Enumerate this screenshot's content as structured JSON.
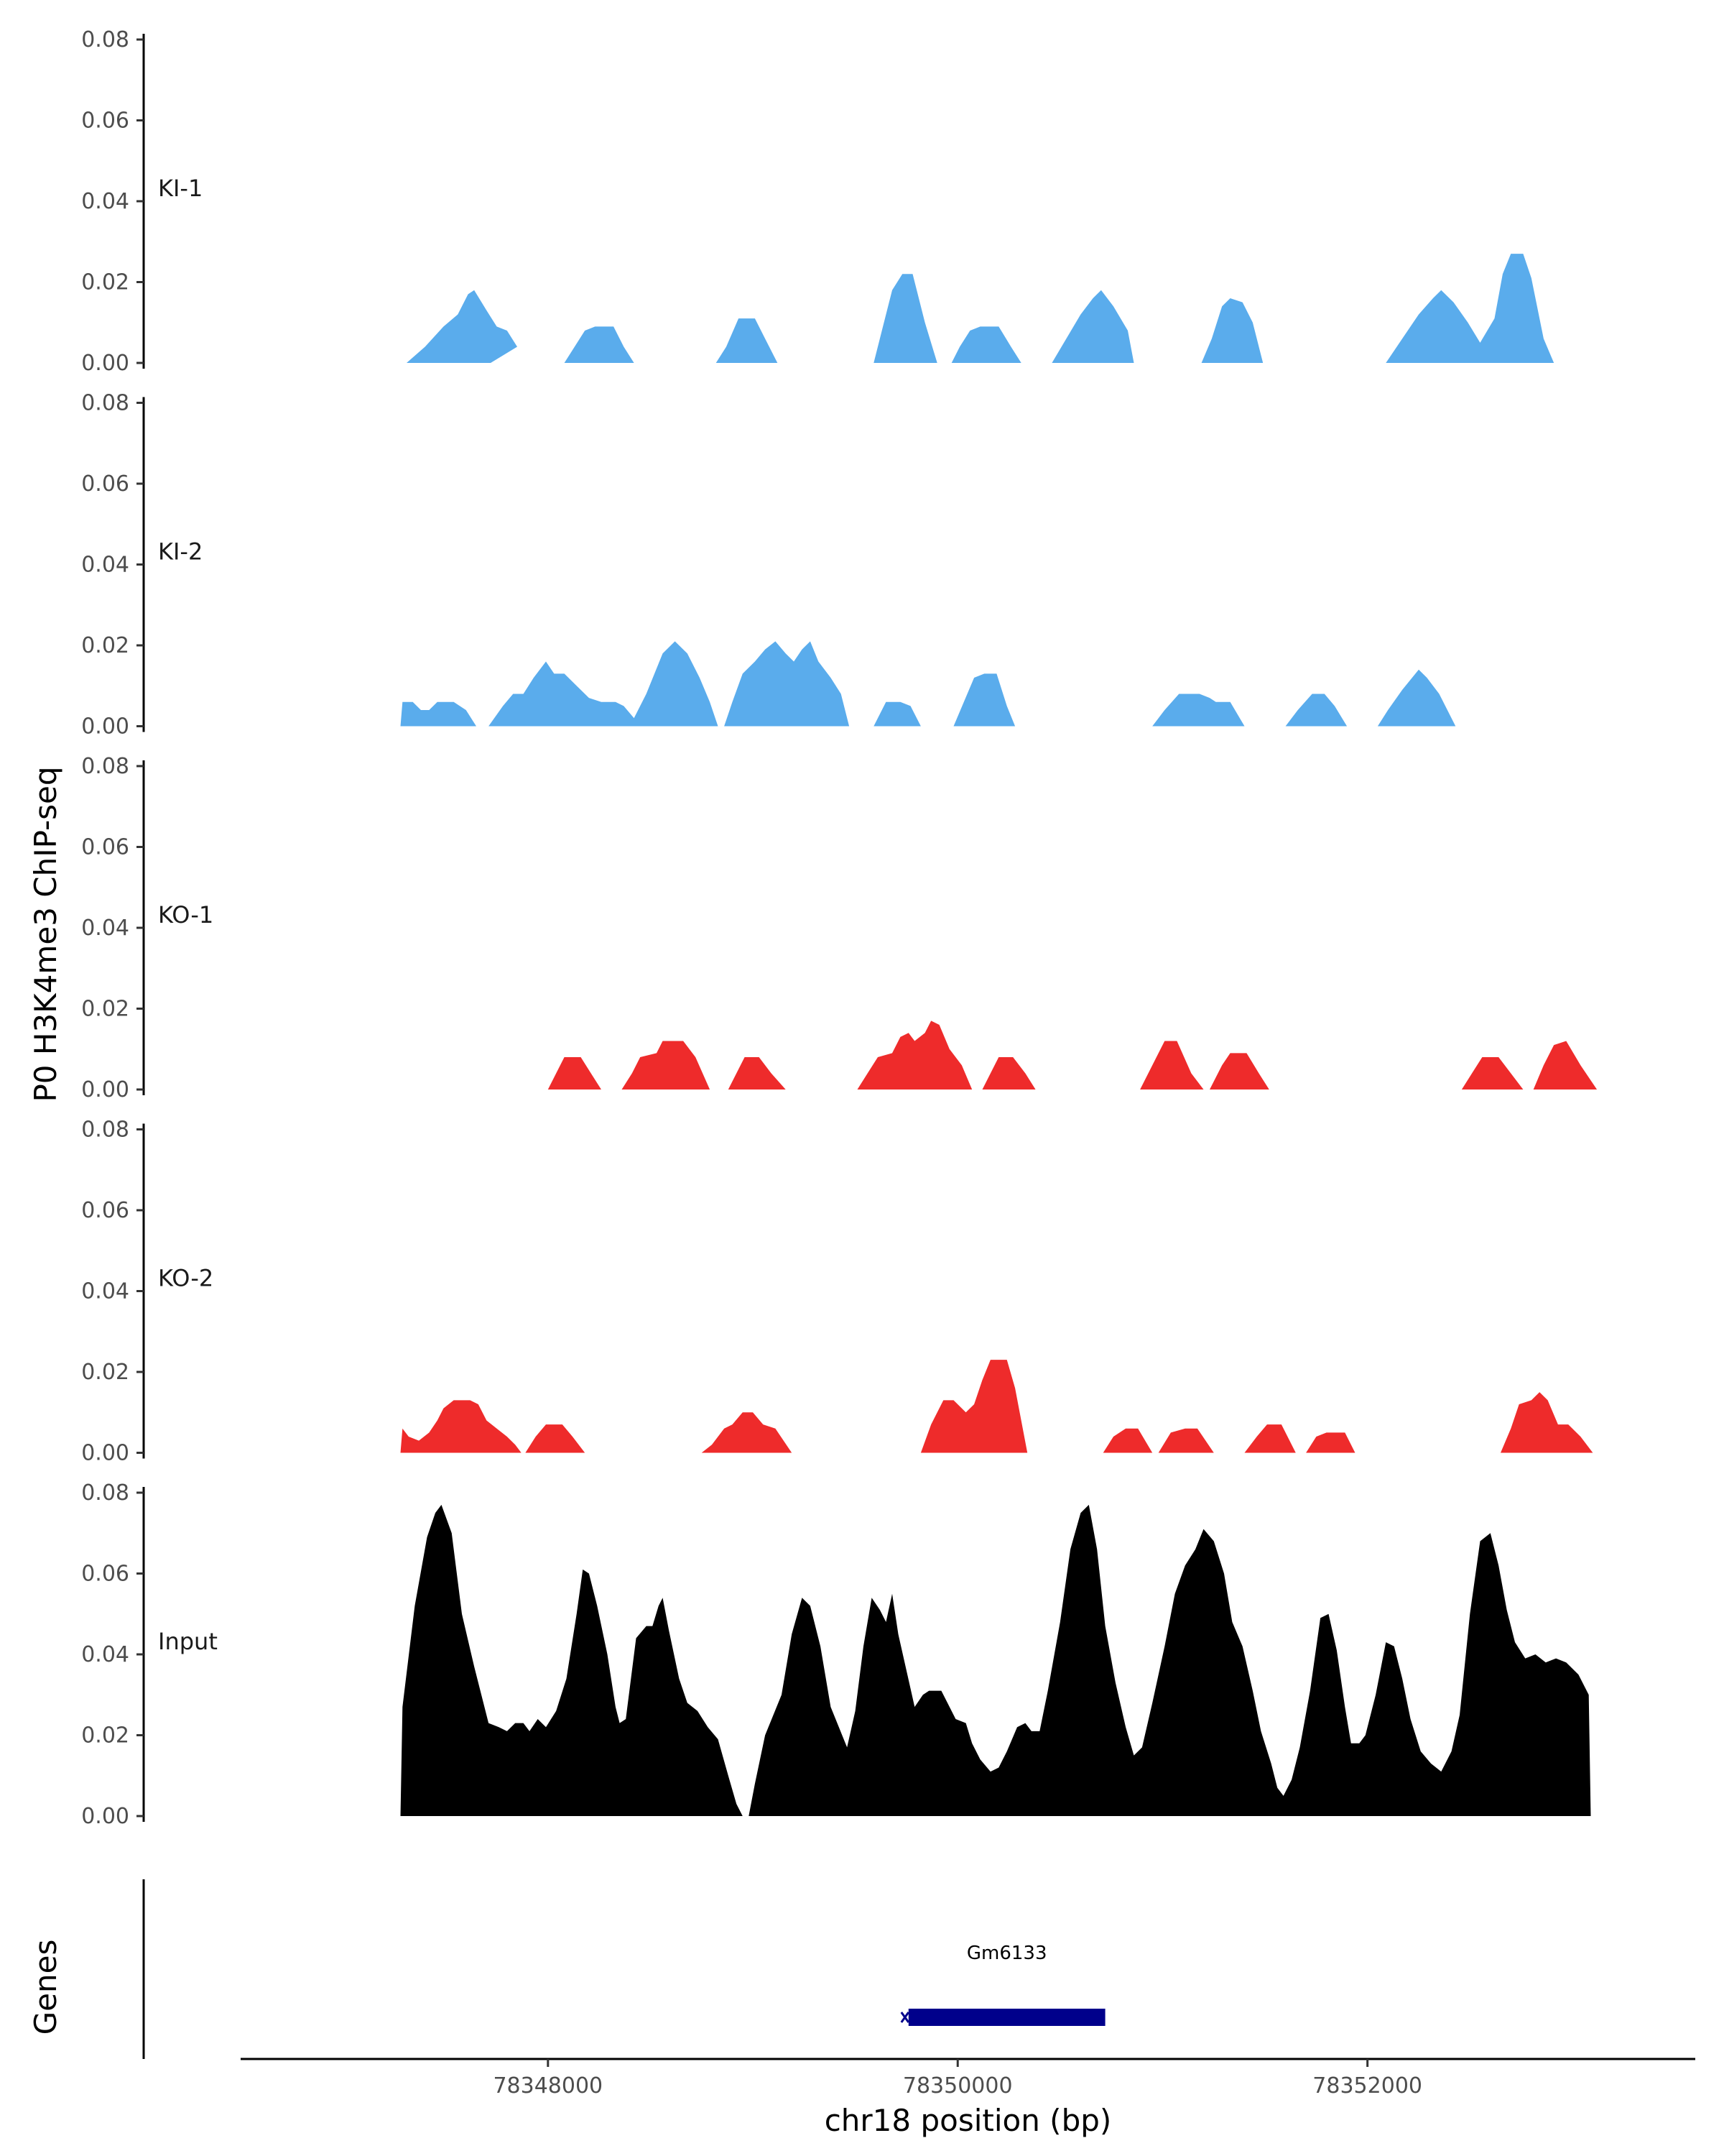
{
  "chart_data": {
    "type": "area",
    "ylabel": "P0 H3K4me3 ChIP-seq",
    "xlabel": "chr18 position (bp)",
    "xlim": [
      78346500,
      78353600
    ],
    "ylim": [
      0,
      0.08
    ],
    "yticks": [
      "0.00",
      "0.02",
      "0.04",
      "0.06",
      "0.08"
    ],
    "xticks": [
      {
        "value": 78348000,
        "label": "78348000"
      },
      {
        "value": 78350000,
        "label": "78350000"
      },
      {
        "value": 78352000,
        "label": "78352000"
      }
    ],
    "colors": {
      "KI": "#5AACEC",
      "KO": "#EE2B2B",
      "Input": "#000000",
      "gene": "#00008B"
    },
    "tracks": [
      {
        "name": "KI-1",
        "color": "#5AACEC",
        "points": [
          [
            78347310,
            0
          ],
          [
            78347400,
            0.005
          ],
          [
            78347500,
            0.01
          ],
          [
            78347590,
            0.015
          ],
          [
            78347620,
            0.018
          ],
          [
            78347700,
            0.012
          ],
          [
            78347760,
            0.009
          ],
          [
            78347820,
            0.004
          ],
          [
            78347720,
            0
          ],
          [
            78347720,
            0
          ]
        ]
      },
      {
        "name": "KI-2",
        "color": "#5AACEC",
        "points": []
      },
      {
        "name": "KO-1",
        "color": "#EE2B2B",
        "points": []
      },
      {
        "name": "KO-2",
        "color": "#EE2B2B",
        "points": []
      },
      {
        "name": "Input",
        "color": "#000000",
        "points": []
      }
    ],
    "genes_label": "Genes",
    "genes": [
      {
        "name": "Gm6133",
        "start": 78349760,
        "end": 78350720,
        "strand": "-"
      }
    ]
  }
}
